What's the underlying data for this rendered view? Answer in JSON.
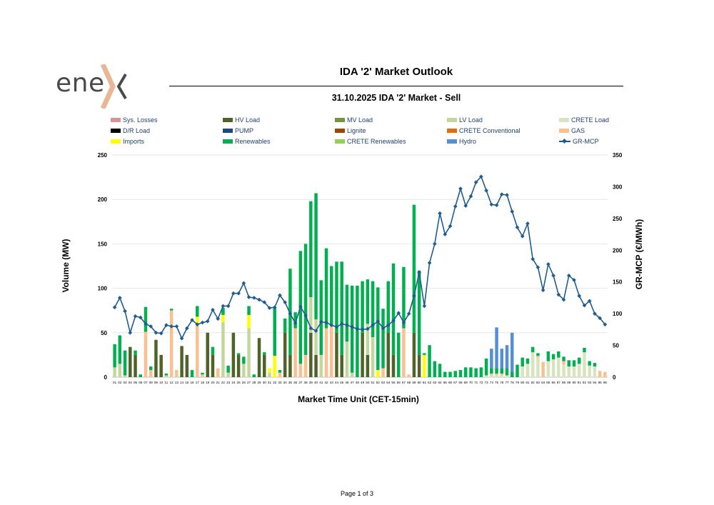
{
  "logo": {
    "text": "ene",
    "mark": "x-chevron"
  },
  "header": {
    "title": "IDA '2' Market Outlook",
    "subtitle": "31.10.2025  IDA '2' Market - Sell"
  },
  "footer": {
    "page": "Page 1 of 3"
  },
  "colors": {
    "sys_losses": "#d99594",
    "hv_load": "#4f6228",
    "mv_load": "#77933c",
    "lv_load": "#c3d69b",
    "crete_load": "#d7e4bd",
    "dr_load": "#000000",
    "pump": "#1f497d",
    "lignite": "#984807",
    "crete_conventional": "#e46c0a",
    "gas": "#fac090",
    "imports": "#ffff00",
    "renewables": "#00b050",
    "crete_renewables": "#92d050",
    "hydro": "#558ed5",
    "gr_mcp": "#1f5c8f"
  },
  "chart_data": {
    "type": "bar",
    "stacked": true,
    "title": "31.10.2025  IDA '2' Market - Sell",
    "xlabel": "Market Time Unit (CET-15min)",
    "ylabel": "Volume (MW)",
    "y2label": "GR-MCP (€/MWh)",
    "ylim": [
      0,
      250
    ],
    "y2lim": [
      0,
      350
    ],
    "yticks": [
      0,
      50,
      100,
      150,
      200,
      250
    ],
    "y2ticks": [
      0,
      50,
      100,
      150,
      200,
      250,
      300,
      350
    ],
    "grid": true,
    "legend_position": "top",
    "categories": [
      "01",
      "02",
      "03",
      "04",
      "05",
      "06",
      "07",
      "08",
      "09",
      "10",
      "11",
      "12",
      "13",
      "14",
      "15",
      "16",
      "17",
      "18",
      "19",
      "20",
      "21",
      "22",
      "23",
      "24",
      "25",
      "26",
      "27",
      "28",
      "29",
      "30",
      "31",
      "32",
      "33",
      "34",
      "35",
      "36",
      "37",
      "38",
      "39",
      "40",
      "41",
      "42",
      "43",
      "44",
      "45",
      "46",
      "47",
      "48",
      "49",
      "50",
      "51",
      "52",
      "53",
      "54",
      "55",
      "56",
      "57",
      "58",
      "59",
      "60",
      "61",
      "62",
      "63",
      "64",
      "65",
      "66",
      "67",
      "68",
      "69",
      "70",
      "71",
      "72",
      "73",
      "74",
      "75",
      "76",
      "77",
      "78",
      "79",
      "80",
      "81",
      "82",
      "83",
      "84",
      "85",
      "86",
      "87",
      "88",
      "89",
      "90",
      "91",
      "92",
      "93",
      "94",
      "95",
      "96"
    ],
    "legend": [
      "Sys. Losses",
      "HV Load",
      "MV Load",
      "LV Load",
      "CRETE Load",
      "D/R Load",
      "PUMP",
      "Lignite",
      "CRETE Conventional",
      "GAS",
      "Imports",
      "Renewables",
      "CRETE Renewables",
      "Hydro",
      "GR-MCP"
    ],
    "series": [
      {
        "name": "HV Load",
        "color_key": "hv_load",
        "values": [
          0,
          0,
          0,
          34,
          25,
          0,
          0,
          0,
          42,
          25,
          0,
          0,
          0,
          35,
          25,
          0,
          0,
          0,
          50,
          25,
          0,
          0,
          0,
          50,
          25,
          0,
          0,
          0,
          44,
          25,
          0,
          0,
          0,
          50,
          25,
          0,
          0,
          0,
          50,
          25,
          0,
          0,
          0,
          50,
          25,
          0,
          0,
          0,
          50,
          25,
          0,
          0,
          0,
          50,
          25,
          0,
          0,
          0,
          50,
          25,
          0,
          0,
          0,
          0,
          0,
          0,
          0,
          0,
          0,
          0,
          0,
          0,
          0,
          0,
          0,
          0,
          0,
          0,
          0,
          0,
          0,
          0,
          0,
          0,
          0,
          0,
          0,
          0,
          0,
          0,
          0,
          0,
          0,
          0,
          0,
          0
        ]
      },
      {
        "name": "LV Load",
        "color_key": "lv_load",
        "values": [
          11,
          15,
          2,
          0,
          0,
          0,
          0,
          0,
          0,
          0,
          2,
          0,
          3,
          0,
          0,
          0,
          0,
          0,
          0,
          0,
          0,
          62,
          5,
          0,
          0,
          15,
          55,
          0,
          0,
          0,
          5,
          0,
          0,
          0,
          0,
          0,
          0,
          0,
          40,
          40,
          25,
          0,
          0,
          0,
          0,
          40,
          5,
          0,
          0,
          35,
          45,
          0,
          0,
          0,
          0,
          0,
          0,
          0,
          0,
          0,
          0,
          0,
          0,
          0,
          0,
          0,
          0,
          0,
          0,
          0,
          0,
          0,
          0,
          0,
          0,
          0,
          0,
          0,
          0,
          0,
          0,
          0,
          0,
          0,
          0,
          0,
          0,
          0,
          0,
          0,
          0,
          0,
          0,
          0,
          0,
          0
        ]
      },
      {
        "name": "CRETE Load",
        "color_key": "crete_load",
        "values": [
          0,
          0,
          0,
          0,
          0,
          0,
          0,
          0,
          0,
          0,
          0,
          0,
          0,
          0,
          0,
          0,
          0,
          0,
          0,
          0,
          0,
          0,
          0,
          0,
          0,
          0,
          0,
          0,
          0,
          0,
          0,
          0,
          0,
          0,
          0,
          0,
          0,
          0,
          0,
          0,
          0,
          0,
          0,
          0,
          0,
          0,
          0,
          0,
          0,
          0,
          0,
          0,
          0,
          0,
          0,
          0,
          0,
          0,
          0,
          0,
          0,
          0,
          0,
          0,
          0,
          0,
          0,
          0,
          0,
          0,
          0,
          0,
          2,
          2,
          2,
          2,
          2,
          0,
          0,
          12,
          15,
          28,
          22,
          0,
          18,
          20,
          22,
          14,
          12,
          12,
          15,
          28,
          13,
          12,
          0,
          0
        ]
      },
      {
        "name": "GAS",
        "color_key": "gas",
        "values": [
          0,
          0,
          0,
          0,
          0,
          0,
          51,
          8,
          0,
          0,
          0,
          75,
          5,
          0,
          0,
          0,
          60,
          3,
          0,
          0,
          10,
          0,
          0,
          0,
          0,
          0,
          0,
          0,
          0,
          0,
          0,
          0,
          5,
          0,
          0,
          55,
          15,
          25,
          0,
          0,
          0,
          55,
          60,
          0,
          0,
          0,
          0,
          0,
          0,
          0,
          0,
          0,
          10,
          0,
          0,
          0,
          55,
          3,
          0,
          0,
          0,
          0,
          0,
          0,
          0,
          0,
          0,
          0,
          0,
          0,
          0,
          0,
          0,
          2,
          2,
          2,
          0,
          0,
          0,
          0,
          0,
          0,
          2,
          17,
          0,
          0,
          0,
          4,
          0,
          0,
          0,
          0,
          0,
          0,
          7,
          6
        ]
      },
      {
        "name": "Imports",
        "color_key": "imports",
        "values": [
          0,
          0,
          0,
          0,
          0,
          0,
          0,
          0,
          0,
          0,
          0,
          0,
          0,
          0,
          0,
          0,
          8,
          0,
          0,
          0,
          0,
          8,
          0,
          0,
          0,
          0,
          15,
          0,
          0,
          0,
          5,
          24,
          0,
          0,
          0,
          0,
          0,
          0,
          0,
          0,
          0,
          0,
          0,
          0,
          0,
          0,
          0,
          0,
          0,
          0,
          0,
          8,
          0,
          0,
          0,
          0,
          0,
          0,
          0,
          0,
          25,
          0,
          0,
          0,
          0,
          0,
          0,
          0,
          0,
          0,
          0,
          0,
          0,
          0,
          0,
          0,
          0,
          0,
          0,
          0,
          0,
          0,
          0,
          0,
          0,
          0,
          0,
          0,
          0,
          0,
          0,
          0,
          0,
          0,
          0,
          0
        ]
      },
      {
        "name": "Renewables",
        "color_key": "renewables",
        "values": [
          26,
          32,
          28,
          0,
          5,
          3,
          28,
          4,
          0,
          0,
          2,
          2,
          0,
          0,
          0,
          8,
          12,
          2,
          0,
          9,
          0,
          8,
          8,
          0,
          2,
          8,
          10,
          3,
          0,
          3,
          0,
          55,
          3,
          16,
          97,
          18,
          127,
          125,
          108,
          142,
          84,
          90,
          65,
          80,
          105,
          64,
          98,
          103,
          58,
          50,
          63,
          93,
          67,
          58,
          103,
          50,
          69,
          0,
          144,
          95,
          2,
          36,
          18,
          15,
          6,
          6,
          7,
          8,
          11,
          11,
          10,
          11,
          19,
          6,
          6,
          6,
          8,
          6,
          14,
          10,
          6,
          6,
          3,
          0,
          11,
          6,
          7,
          5,
          7,
          7,
          7,
          5,
          5,
          4,
          0,
          0
        ]
      },
      {
        "name": "Hydro",
        "color_key": "hydro",
        "values": [
          0,
          0,
          0,
          0,
          0,
          0,
          0,
          0,
          0,
          0,
          0,
          0,
          0,
          0,
          0,
          0,
          0,
          0,
          0,
          0,
          0,
          0,
          0,
          0,
          0,
          0,
          0,
          0,
          0,
          0,
          0,
          0,
          0,
          0,
          0,
          0,
          0,
          0,
          0,
          0,
          0,
          0,
          0,
          0,
          0,
          0,
          0,
          0,
          0,
          0,
          0,
          0,
          0,
          0,
          0,
          0,
          0,
          0,
          0,
          0,
          0,
          0,
          0,
          0,
          0,
          0,
          0,
          0,
          0,
          0,
          0,
          0,
          0,
          22,
          46,
          22,
          26,
          44,
          0,
          0,
          0,
          0,
          0,
          0,
          0,
          0,
          0,
          0,
          0,
          0,
          0,
          0,
          0,
          0,
          0,
          0
        ]
      }
    ],
    "gr_mcp": {
      "name": "GR-MCP",
      "axis": "right",
      "color_key": "gr_mcp",
      "values": [
        110,
        125,
        104,
        70,
        96,
        94,
        84,
        80,
        70,
        69,
        82,
        80,
        80,
        61,
        77,
        90,
        83,
        86,
        88,
        106,
        92,
        112,
        112,
        132,
        132,
        148,
        126,
        125,
        122,
        118,
        109,
        110,
        129,
        118,
        100,
        85,
        111,
        97,
        77,
        73,
        87,
        86,
        82,
        79,
        84,
        82,
        79,
        76,
        75,
        76,
        82,
        88,
        77,
        82,
        89,
        101,
        86,
        100,
        128,
        165,
        112,
        180,
        210,
        258,
        225,
        238,
        269,
        297,
        270,
        285,
        307,
        316,
        294,
        272,
        271,
        288,
        287,
        261,
        236,
        222,
        242,
        186,
        173,
        137,
        178,
        160,
        130,
        122,
        160,
        153,
        128,
        113,
        120,
        100,
        93,
        83
      ]
    }
  }
}
